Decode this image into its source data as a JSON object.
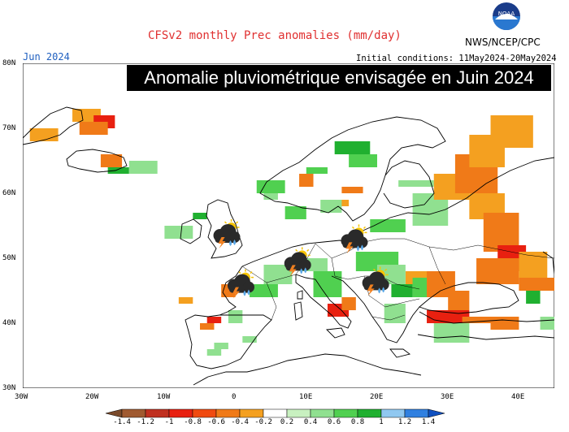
{
  "header": {
    "title": "CFSv2 monthly Prec anomalies (mm/day)",
    "agency": "NWS/NCEP/CPC",
    "logo_text": "NOAA",
    "month": "Jun 2024",
    "initial_conditions": "Initial conditions: 11May2024-20May2024",
    "banner": "Anomalie pluviométrique envisagée en Juin 2024"
  },
  "axes": {
    "lat_labels": [
      "80N",
      "70N",
      "60N",
      "50N",
      "40N",
      "30N"
    ],
    "lon_labels": [
      "30W",
      "20W",
      "10W",
      "0",
      "10E",
      "20E",
      "30E",
      "40E"
    ]
  },
  "legend": {
    "values": [
      "-1.4",
      "-1.2",
      "-1",
      "-0.8",
      "-0.6",
      "-0.4",
      "-0.2",
      "0.2",
      "0.4",
      "0.6",
      "0.8",
      "1",
      "1.2",
      "1.4"
    ],
    "colors": [
      "#7a4a2a",
      "#a05a30",
      "#c03020",
      "#e82010",
      "#f04a10",
      "#f07a18",
      "#f4a020",
      "#ffffff",
      "#c8f0c0",
      "#90e090",
      "#50d050",
      "#20b030",
      "#90c8f0",
      "#3080e0",
      "#1050c0"
    ]
  },
  "weather_icons": [
    {
      "name": "storm-icon-uk",
      "lon": -1.5,
      "lat": 53.5
    },
    {
      "name": "storm-icon-france",
      "lon": 0.5,
      "lat": 45.8
    },
    {
      "name": "storm-icon-alps",
      "lon": 8.5,
      "lat": 49.2
    },
    {
      "name": "storm-icon-poland",
      "lon": 16.5,
      "lat": 52.7
    },
    {
      "name": "storm-icon-balkans",
      "lon": 19.5,
      "lat": 46.2
    }
  ]
}
